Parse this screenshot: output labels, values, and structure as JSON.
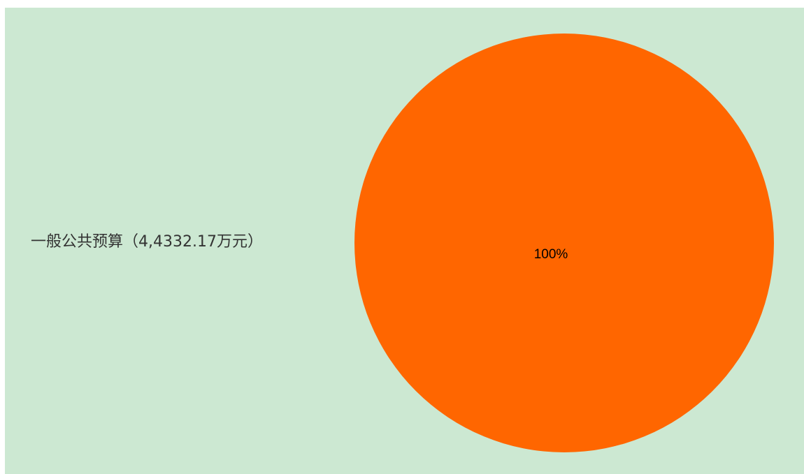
{
  "chart_data": {
    "type": "pie",
    "slices": [
      {
        "label": "一般公共预算（4,4332.17万元）",
        "value": 100,
        "percent_label": "100%",
        "color": "#ff6600"
      }
    ],
    "background_color": "#cce8d2",
    "legend_placement": "left"
  }
}
